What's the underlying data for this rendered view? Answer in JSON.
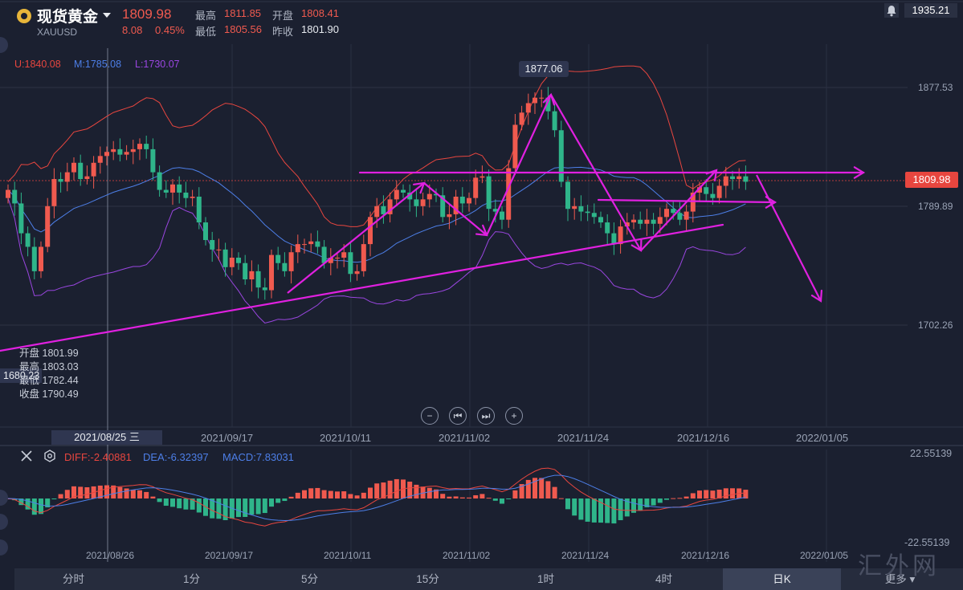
{
  "header": {
    "title": "现货黄金",
    "symbol": "XAUUSD",
    "price": "1809.98",
    "change": "8.08",
    "change_pct": "0.45%",
    "high_label": "最高",
    "high": "1811.85",
    "open_label": "开盘",
    "open": "1808.41",
    "low_label": "最低",
    "low": "1805.56",
    "prev_close_label": "昨收",
    "prev_close": "1801.90"
  },
  "top_right_value": "1935.21",
  "bands": {
    "upper": "U:1840.08",
    "mid": "M:1785.08",
    "lower": "L:1730.07"
  },
  "price_axis": [
    "1877.53",
    "1789.89",
    "1702.26"
  ],
  "current_price_tag": "1809.98",
  "high_tag": "1877.06",
  "left_price_tag": "1680.23",
  "crosshair_ohlc": [
    {
      "label": "开盘",
      "value": "1801.99"
    },
    {
      "label": "最高",
      "value": "1803.03"
    },
    {
      "label": "最低",
      "value": "1782.44"
    },
    {
      "label": "收盘",
      "value": "1790.49"
    }
  ],
  "crosshair_date": "2021/08/25 三",
  "date_axis": [
    "2021/09/17",
    "2021/10/11",
    "2021/11/02",
    "2021/11/24",
    "2021/12/16",
    "2022/01/05"
  ],
  "macd_date_axis": [
    "2021/08/26",
    "2021/09/17",
    "2021/10/11",
    "2021/11/02",
    "2021/11/24",
    "2021/12/16",
    "2022/01/05"
  ],
  "controls": [
    "−",
    "⏮",
    "⏭",
    "+"
  ],
  "macd": {
    "diff": "DIFF:-2.40881",
    "dea": "DEA:-6.32397",
    "macd": "MACD:7.83031",
    "top": "22.55139",
    "bottom": "-22.55139"
  },
  "tabs": [
    "分时",
    "1分",
    "5分",
    "15分",
    "1时",
    "4时",
    "日K",
    "更多"
  ],
  "active_tab": "日K",
  "watermark": "汇外网",
  "colors": {
    "up": "#f05a4f",
    "down": "#2fb58a",
    "upper": "#e8463f",
    "mid": "#4d7fe8",
    "lower": "#9a46e0",
    "annotation": "#e020e0"
  },
  "chart_data": {
    "type": "candlestick",
    "title": "现货黄金 XAUUSD 日K",
    "ylim": [
      1665,
      1935
    ],
    "x_start": "2021/08/25",
    "x_labels": [
      "2021/09/17",
      "2021/10/11",
      "2021/11/02",
      "2021/11/24",
      "2021/12/16",
      "2022/01/05"
    ],
    "closes": [
      1802,
      1792,
      1770,
      1760,
      1742,
      1760,
      1790,
      1810,
      1808,
      1815,
      1822,
      1810,
      1812,
      1822,
      1827,
      1830,
      1832,
      1828,
      1830,
      1832,
      1836,
      1832,
      1815,
      1802,
      1800,
      1806,
      1800,
      1796,
      1797,
      1778,
      1765,
      1758,
      1758,
      1745,
      1752,
      1748,
      1736,
      1742,
      1730,
      1728,
      1754,
      1748,
      1742,
      1756,
      1762,
      1762,
      1764,
      1760,
      1748,
      1752,
      1752,
      1756,
      1740,
      1742,
      1762,
      1782,
      1790,
      1784,
      1795,
      1802,
      1800,
      1795,
      1790,
      1795,
      1799,
      1798,
      1782,
      1784,
      1797,
      1792,
      1796,
      1811,
      1812,
      1788,
      1786,
      1780,
      1818,
      1850,
      1859,
      1866,
      1870,
      1870,
      1860,
      1846,
      1808,
      1788,
      1790,
      1786,
      1785,
      1782,
      1778,
      1770,
      1762,
      1775,
      1778,
      1780,
      1777,
      1780,
      1777,
      1782,
      1788,
      1785,
      1780,
      1786,
      1800,
      1804,
      1799,
      1796,
      1805,
      1812,
      1810,
      1812,
      1808
    ]
  }
}
